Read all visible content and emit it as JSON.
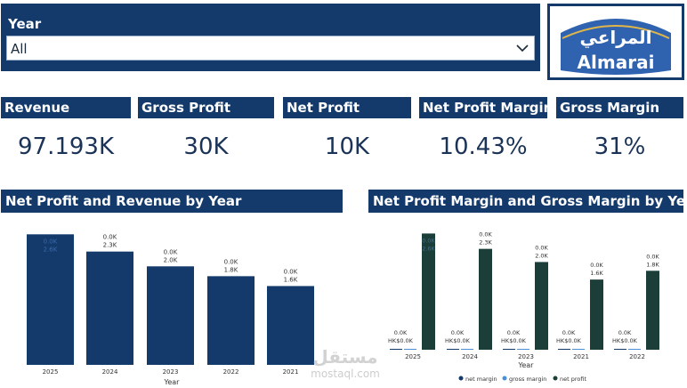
{
  "slicer": {
    "title": "Year",
    "value": "All"
  },
  "logo": {
    "arabic": "المراعي",
    "latin": "Almarai"
  },
  "cards": [
    {
      "title": "Revenue",
      "value": "97.193K"
    },
    {
      "title": "Gross Profit",
      "value": "30K"
    },
    {
      "title": "Net Profit",
      "value": "10K"
    },
    {
      "title": "Net Profit Margin",
      "value": "10.43%"
    },
    {
      "title": "Gross Margin",
      "value": "31%"
    }
  ],
  "colors": {
    "navy": "#133a6b",
    "dark_green": "#1b3f38",
    "accent_blue": "#4a90d9"
  },
  "chart_data": [
    {
      "type": "bar",
      "title": "Net Profit and Revenue by Year",
      "xlabel": "Year",
      "categories": [
        "2025",
        "2024",
        "2023",
        "2022",
        "2021"
      ],
      "values": [
        2.65,
        2.3,
        2.0,
        1.8,
        1.6
      ],
      "top_labels": [
        "0.0K",
        "0.0K",
        "0.0K",
        "0.0K",
        "0.0K"
      ],
      "value_labels": [
        "2.6K",
        "2.3K",
        "2.0K",
        "1.8K",
        "1.6K"
      ],
      "ylim": [
        0,
        2.8
      ]
    },
    {
      "type": "bar",
      "title": "Net Profit Margin and Gross Margin by Year",
      "xlabel": "Year",
      "categories": [
        "2025",
        "2024",
        "2023",
        "2021",
        "2022"
      ],
      "series": [
        {
          "name": "net margin",
          "values": [
            0,
            0,
            0,
            0,
            0
          ]
        },
        {
          "name": "gross margin",
          "values": [
            0,
            0,
            0,
            0,
            0
          ]
        },
        {
          "name": "net profit",
          "values": [
            2.65,
            2.3,
            2.0,
            1.6,
            1.8
          ]
        }
      ],
      "small_labels": [
        "0.0K",
        "0.0K",
        "0.0K",
        "0.0K",
        "0.0K"
      ],
      "small_value_labels": [
        "HK$0.0K",
        "HK$0.0K",
        "HK$0.0K",
        "HK$0.0K",
        "HK$0.0K"
      ],
      "top_labels": [
        "0.0K",
        "0.0K",
        "0.0K",
        "0.0K",
        "0.0K"
      ],
      "value_labels": [
        "2.6K",
        "2.3K",
        "2.0K",
        "1.6K",
        "1.8K"
      ],
      "ylim": [
        0,
        2.8
      ]
    }
  ],
  "watermark": {
    "arabic": "مستقل",
    "latin": "mostaql.com"
  }
}
